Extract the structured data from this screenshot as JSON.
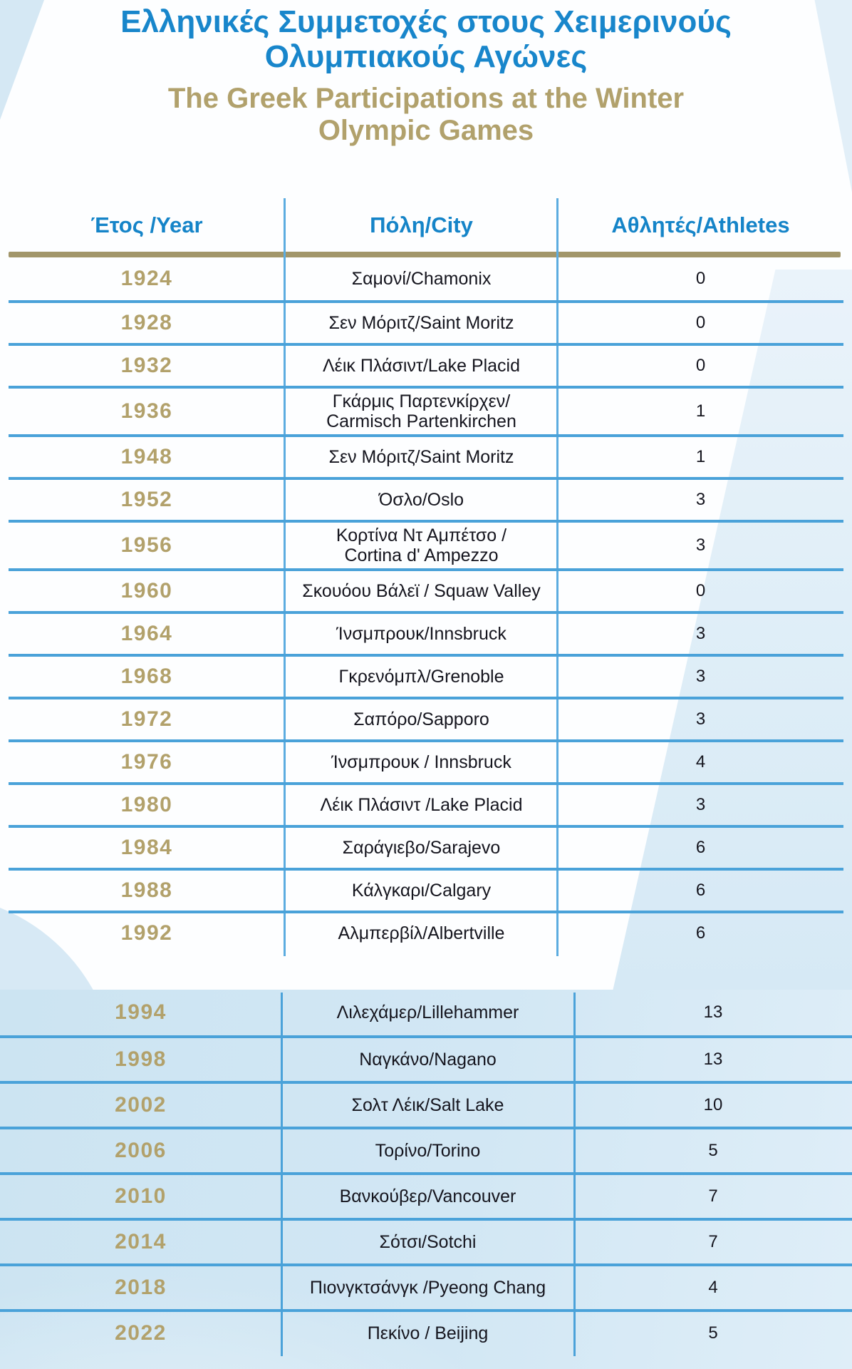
{
  "title": {
    "el_line1": "Ελληνικές Συμμετοχές στους Χειμερινούς",
    "el_line2": "Ολυμπιακούς Αγώνες",
    "en_line1": "The Greek Participations at the Winter",
    "en_line2": "Olympic Games"
  },
  "table": {
    "headers": {
      "year": "Έτος /Year",
      "city": "Πόλη/City",
      "athletes": "Αθλητές/Athletes"
    },
    "section1_rows": [
      {
        "year": "1924",
        "city": "Σαμονί/Chamonix",
        "athletes": "0"
      },
      {
        "year": "1928",
        "city": "Σεν Μόριτζ/Saint Moritz",
        "athletes": "0"
      },
      {
        "year": "1932",
        "city": "Λέικ Πλάσιντ/Lake Placid",
        "athletes": "0"
      },
      {
        "year": "1936",
        "city": "Γκάρμις Παρτενκίρχεν/",
        "city2": "Carmisch Partenkirchen",
        "athletes": "1"
      },
      {
        "year": "1948",
        "city": "Σεν Μόριτζ/Saint Moritz",
        "athletes": "1"
      },
      {
        "year": "1952",
        "city": "Όσλο/Oslo",
        "athletes": "3"
      },
      {
        "year": "1956",
        "city": "Κορτίνα Ντ Αμπέτσο /",
        "city2": "Cortina d' Ampezzo",
        "athletes": "3"
      },
      {
        "year": "1960",
        "city": "Σκουόου Βάλεϊ / Squaw Valley",
        "athletes": "0"
      },
      {
        "year": "1964",
        "city": "Ίνσμπρουκ/Innsbruck",
        "athletes": "3"
      },
      {
        "year": "1968",
        "city": "Γκρενόμπλ/Grenoble",
        "athletes": "3"
      },
      {
        "year": "1972",
        "city": "Σαπόρο/Sapporo",
        "athletes": "3"
      },
      {
        "year": "1976",
        "city": "Ίνσμπρουκ / Innsbruck",
        "athletes": "4"
      },
      {
        "year": "1980",
        "city": "Λέικ Πλάσιντ /Lake Placid",
        "athletes": "3"
      },
      {
        "year": "1984",
        "city": "Σαράγιεβο/Sarajevo",
        "athletes": "6"
      },
      {
        "year": "1988",
        "city": "Κάλγκαρι/Calgary",
        "athletes": "6"
      },
      {
        "year": "1992",
        "city": "Αλμπερβίλ/Albertville",
        "athletes": "6"
      }
    ],
    "section2_rows": [
      {
        "year": "1994",
        "city": "Λιλεχάμερ/Lillehammer",
        "athletes": "13"
      },
      {
        "year": "1998",
        "city": "Ναγκάνο/Nagano",
        "athletes": "13"
      },
      {
        "year": "2002",
        "city": "Σολτ Λέικ/Salt Lake",
        "athletes": "10"
      },
      {
        "year": "2006",
        "city": "Τορίνο/Torino",
        "athletes": "5"
      },
      {
        "year": "2010",
        "city": "Βανκούβερ/Vancouver",
        "athletes": "7"
      },
      {
        "year": "2014",
        "city": "Σότσι/Sotchi",
        "athletes": "7"
      },
      {
        "year": "2018",
        "city": "Πιονγκτσάνγκ /Pyeong Chang",
        "athletes": "4"
      },
      {
        "year": "2022",
        "city": "Πεκίνο / Beijing",
        "athletes": "5"
      }
    ]
  },
  "colors": {
    "title_blue": "#1886cb",
    "title_gold": "#b1a16c",
    "gold_rule": "#a2966a",
    "row_line_blue": "#4aa2d9",
    "section2_background": "#cfe5f3",
    "body_text": "#15151e"
  }
}
